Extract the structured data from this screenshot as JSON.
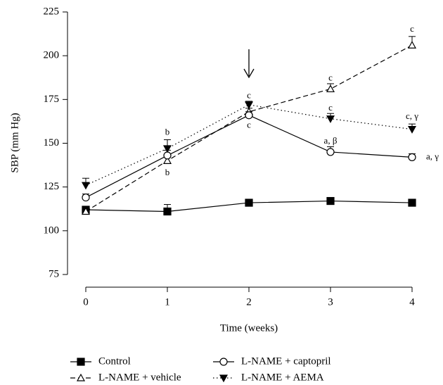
{
  "chart_data": {
    "type": "line",
    "x_label": "Time (weeks)",
    "y_label": "SBP (mm Hg)",
    "x": [
      0,
      1,
      2,
      3,
      4
    ],
    "xlim": [
      0,
      4
    ],
    "xticks": [
      0,
      1,
      2,
      3,
      4
    ],
    "ylim": [
      75,
      225
    ],
    "yticks": [
      75,
      100,
      125,
      150,
      175,
      200,
      225
    ],
    "series": [
      {
        "name": "Control",
        "color": "#000000",
        "linestyle": "solid",
        "marker": "square",
        "filled": true,
        "values": [
          112,
          111,
          116,
          117,
          116
        ],
        "errors": [
          1,
          4,
          1,
          1,
          1
        ]
      },
      {
        "name": "L-NAME + vehicle",
        "color": "#000000",
        "linestyle": "dashed",
        "marker": "triangle-up",
        "filled": false,
        "values": [
          111,
          140,
          168,
          181,
          206
        ],
        "errors": [
          2,
          3,
          2,
          3,
          5
        ]
      },
      {
        "name": "L-NAME + captopril",
        "color": "#000000",
        "linestyle": "solid",
        "marker": "circle",
        "filled": false,
        "values": [
          119,
          143,
          166,
          145,
          142
        ],
        "errors": [
          2,
          3,
          2,
          3,
          2
        ]
      },
      {
        "name": "L-NAME + AEMA",
        "color": "#000000",
        "linestyle": "dotted",
        "marker": "triangle-down",
        "filled": true,
        "values": [
          126,
          147,
          172,
          164,
          158
        ],
        "errors": [
          4,
          5,
          2,
          3,
          3
        ]
      }
    ],
    "annotations": [
      {
        "text": "c",
        "x": 2,
        "y": 177
      },
      {
        "text": "c",
        "x": 2,
        "y": 160
      },
      {
        "text": "b",
        "x": 1,
        "y": 156
      },
      {
        "text": "b",
        "x": 1,
        "y": 133
      },
      {
        "text": "c",
        "x": 3,
        "y": 187
      },
      {
        "text": "c",
        "x": 3,
        "y": 170
      },
      {
        "text": "a, β",
        "x": 3,
        "y": 151
      },
      {
        "text": "c",
        "x": 4,
        "y": 215
      },
      {
        "text": "c, γ",
        "x": 4,
        "y": 165
      },
      {
        "text": "a, γ",
        "x": 4.25,
        "y": 142
      }
    ]
  }
}
